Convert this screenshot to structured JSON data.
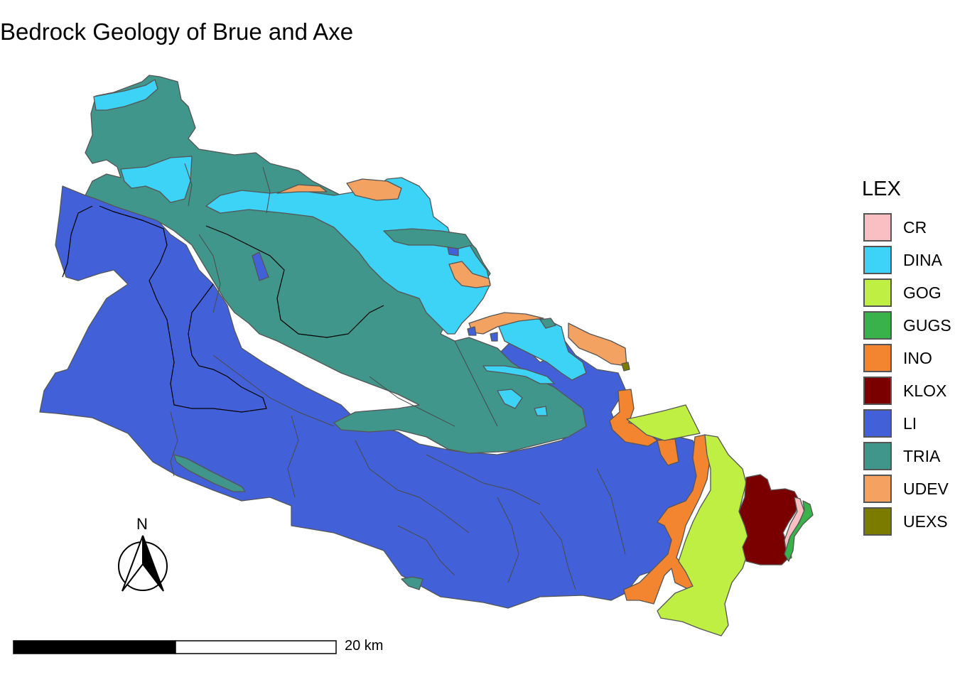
{
  "title": "Bedrock Geology of Brue and Axe",
  "legend": {
    "title": "LEX",
    "items": [
      {
        "code": "CR",
        "color": "#f8c0c2"
      },
      {
        "code": "DINA",
        "color": "#3dd3f6"
      },
      {
        "code": "GOG",
        "color": "#c0ef43"
      },
      {
        "code": "GUGS",
        "color": "#3ab24c"
      },
      {
        "code": "INO",
        "color": "#f38530"
      },
      {
        "code": "KLOX",
        "color": "#7a0000"
      },
      {
        "code": "LI",
        "color": "#4261d8"
      },
      {
        "code": "TRIA",
        "color": "#40968a"
      },
      {
        "code": "UDEV",
        "color": "#f3a261"
      },
      {
        "code": "UEXS",
        "color": "#7b7b00"
      }
    ]
  },
  "north_arrow": {
    "label": "N"
  },
  "scale_bar": {
    "label": "20 km"
  }
}
